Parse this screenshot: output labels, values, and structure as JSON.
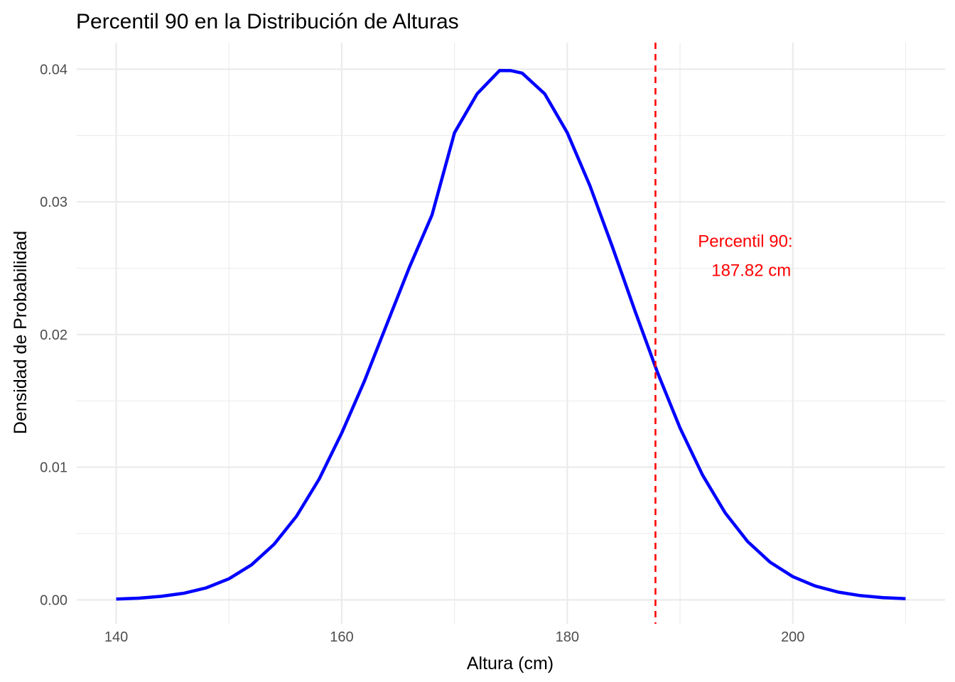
{
  "chart_data": {
    "type": "line",
    "title": "Percentil 90 en la Distribución de Alturas",
    "xlabel": "Altura (cm)",
    "ylabel": "Densidad de Probabilidad",
    "xlim": [
      136.5,
      213.5
    ],
    "ylim": [
      -0.0018,
      0.042
    ],
    "x_ticks": [
      140,
      160,
      180,
      200
    ],
    "x_minor_ticks": [
      150,
      170,
      190,
      210
    ],
    "y_ticks": [
      0.0,
      0.01,
      0.02,
      0.03,
      0.04
    ],
    "y_tick_labels": [
      "0.00",
      "0.01",
      "0.02",
      "0.03",
      "0.04"
    ],
    "y_minor_ticks": [
      0.005,
      0.015,
      0.025,
      0.035
    ],
    "x_tick_labels": [
      "140",
      "160",
      "180",
      "200"
    ],
    "grid": true,
    "series": [
      {
        "color": "#0000ff",
        "x": [
          140,
          142,
          144,
          146,
          148,
          150,
          152,
          154,
          156,
          158,
          160,
          162,
          164,
          166,
          168,
          170,
          172,
          174,
          175,
          176,
          178,
          180,
          182,
          184,
          186,
          188,
          190,
          192,
          194,
          196,
          198,
          200,
          202,
          204,
          206,
          208,
          210
        ],
        "y": [
          6e-05,
          0.00013,
          0.00027,
          0.0005,
          0.00091,
          0.00159,
          0.00264,
          0.00419,
          0.00632,
          0.00911,
          0.01258,
          0.01647,
          0.02078,
          0.02507,
          0.029,
          0.03521,
          0.03814,
          0.0399,
          0.03989,
          0.0397,
          0.03814,
          0.03521,
          0.03123,
          0.02661,
          0.02179,
          0.01714,
          0.01295,
          0.0094,
          0.00656,
          0.00439,
          0.00283,
          0.00175,
          0.00104,
          0.00059,
          0.00032,
          0.00017,
          9e-05
        ]
      }
    ],
    "vline": {
      "x": 187.82,
      "color": "#ff0000",
      "style": "dashed"
    },
    "annotation": {
      "line1": "Percentil 90:",
      "line2": "187.82 cm",
      "x": 196,
      "y": 0.0265,
      "color": "#ff0000"
    }
  }
}
